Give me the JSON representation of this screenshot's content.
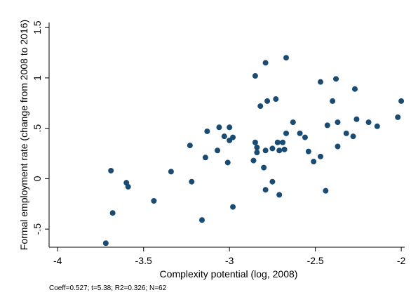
{
  "chart_data": {
    "type": "scatter",
    "title": "",
    "xlabel": "Complexity potential (log, 2008)",
    "ylabel": "Formal employment rate (change from 2008 to 2016)",
    "note": "Coeff=0.527; t=5.38; R2=0.326; N=62",
    "xlim": [
      -4.05,
      -1.98
    ],
    "ylim": [
      -0.68,
      1.55
    ],
    "xticks": [
      -4,
      -3.5,
      -3,
      -2.5,
      -2
    ],
    "xtick_labels": [
      "-4",
      "-3.5",
      "-3",
      "-2.5",
      "-2"
    ],
    "yticks": [
      -0.5,
      0,
      0.5,
      1,
      1.5
    ],
    "ytick_labels": [
      "-.5",
      "0",
      ".5",
      "1",
      "1.5"
    ],
    "grid": false,
    "marker_color": "#1a4c73",
    "series": [
      {
        "points": [
          [
            -3.72,
            -0.64
          ],
          [
            -3.69,
            0.08
          ],
          [
            -3.68,
            -0.34
          ],
          [
            -3.6,
            -0.04
          ],
          [
            -3.59,
            -0.08
          ],
          [
            -3.44,
            -0.22
          ],
          [
            -3.34,
            0.07
          ],
          [
            -3.23,
            0.33
          ],
          [
            -3.22,
            -0.03
          ],
          [
            -3.16,
            -0.41
          ],
          [
            -3.14,
            0.21
          ],
          [
            -3.13,
            0.47
          ],
          [
            -3.07,
            0.28
          ],
          [
            -3.06,
            0.51
          ],
          [
            -3.03,
            0.42
          ],
          [
            -3.01,
            0.16
          ],
          [
            -3.0,
            0.38
          ],
          [
            -3.0,
            0.51
          ],
          [
            -2.98,
            0.41
          ],
          [
            -2.98,
            -0.28
          ],
          [
            -2.86,
            0.18
          ],
          [
            -2.85,
            1.02
          ],
          [
            -2.85,
            0.36
          ],
          [
            -2.84,
            0.31
          ],
          [
            -2.84,
            0.26
          ],
          [
            -2.82,
            0.72
          ],
          [
            -2.8,
            0.11
          ],
          [
            -2.79,
            1.15
          ],
          [
            -2.79,
            -0.11
          ],
          [
            -2.79,
            0.28
          ],
          [
            -2.78,
            0.77
          ],
          [
            -2.75,
            -0.03
          ],
          [
            -2.75,
            0.3
          ],
          [
            -2.73,
            0.79
          ],
          [
            -2.72,
            0.36
          ],
          [
            -2.71,
            0.28
          ],
          [
            -2.71,
            -0.16
          ],
          [
            -2.69,
            0.36
          ],
          [
            -2.68,
            0.29
          ],
          [
            -2.67,
            1.2
          ],
          [
            -2.67,
            0.45
          ],
          [
            -2.63,
            0.56
          ],
          [
            -2.59,
            0.45
          ],
          [
            -2.56,
            0.41
          ],
          [
            -2.54,
            0.27
          ],
          [
            -2.51,
            0.17
          ],
          [
            -2.47,
            0.96
          ],
          [
            -2.47,
            0.22
          ],
          [
            -2.44,
            -0.12
          ],
          [
            -2.43,
            0.53
          ],
          [
            -2.4,
            0.77
          ],
          [
            -2.38,
            0.99
          ],
          [
            -2.37,
            0.32
          ],
          [
            -2.37,
            0.56
          ],
          [
            -2.32,
            0.45
          ],
          [
            -2.28,
            0.42
          ],
          [
            -2.27,
            0.89
          ],
          [
            -2.26,
            0.59
          ],
          [
            -2.19,
            0.56
          ],
          [
            -2.14,
            0.52
          ],
          [
            -2.02,
            0.61
          ],
          [
            -2.0,
            0.77
          ]
        ]
      }
    ]
  }
}
